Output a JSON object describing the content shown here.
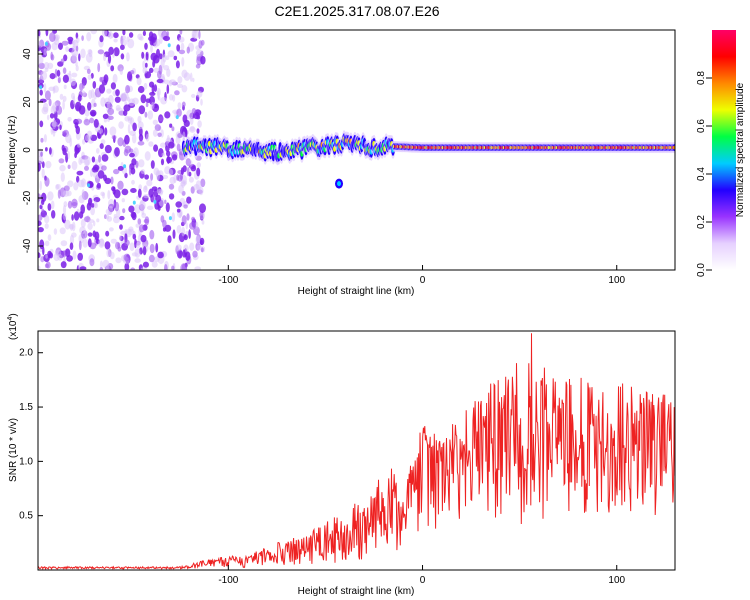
{
  "title": "C2E1.2025.317.08.07.E26",
  "chart_data": [
    {
      "type": "heatmap",
      "name": "spectrogram",
      "xlabel": "Height of straight line (km)",
      "ylabel": "Frequency (Hz)",
      "xlim": [
        -198,
        130
      ],
      "ylim": [
        -50,
        50
      ],
      "xticks": [
        -100,
        0,
        100
      ],
      "yticks": [
        -40,
        -20,
        0,
        20,
        40
      ],
      "noise_region_x": [
        -198,
        -113
      ],
      "signal_band": {
        "x_start": -123,
        "x_end": 130,
        "center_hz": [
          {
            "x": -120,
            "hz": 2.0
          },
          {
            "x": -100,
            "hz": 0.5
          },
          {
            "x": -80,
            "hz": -1.0
          },
          {
            "x": -60,
            "hz": 0.5
          },
          {
            "x": -40,
            "hz": 3.0
          },
          {
            "x": -25,
            "hz": 1.0
          },
          {
            "x": -15,
            "hz": 1.5
          },
          {
            "x": 0,
            "hz": 1.0
          },
          {
            "x": 130,
            "hz": 1.0
          }
        ]
      },
      "outlier_blob": {
        "x": -43,
        "hz": -14
      },
      "colorbar": {
        "label": "Normalized spectral amplitude",
        "range": [
          0.0,
          1.0
        ],
        "ticks": [
          "0.0",
          "0.2",
          "0.4",
          "0.6",
          "0.8"
        ],
        "tick_values": [
          0.0,
          0.2,
          0.4,
          0.6,
          0.8
        ],
        "colors": [
          "#ffffff",
          "#e6d0ff",
          "#9933ff",
          "#2200ff",
          "#00ccff",
          "#00ff44",
          "#eeff00",
          "#ff8800",
          "#ff0000",
          "#ff0066"
        ]
      }
    },
    {
      "type": "line",
      "name": "snr",
      "xlabel": "Height of straight line (km)",
      "ylabel": "SNR (10 * v/v)",
      "y_multiplier": "(x10",
      "y_multiplier_exp": "4",
      "y_multiplier_close": ")",
      "xlim": [
        -198,
        130
      ],
      "ylim": [
        0,
        2.2
      ],
      "xticks": [
        -100,
        0,
        100
      ],
      "yticks": [
        0.5,
        1.0,
        1.5,
        2.0
      ],
      "ytick_labels": [
        "0.5",
        "1.0",
        "1.5",
        "2.0"
      ],
      "color": "#ee2222",
      "envelope": [
        {
          "x": -198,
          "low": 0.01,
          "high": 0.03
        },
        {
          "x": -125,
          "low": 0.01,
          "high": 0.03
        },
        {
          "x": -110,
          "low": 0.01,
          "high": 0.1
        },
        {
          "x": -90,
          "low": 0.02,
          "high": 0.15
        },
        {
          "x": -70,
          "low": 0.04,
          "high": 0.28
        },
        {
          "x": -55,
          "low": 0.05,
          "high": 0.38
        },
        {
          "x": -40,
          "low": 0.05,
          "high": 0.55
        },
        {
          "x": -25,
          "low": 0.08,
          "high": 0.8
        },
        {
          "x": -15,
          "low": 0.1,
          "high": 0.95
        },
        {
          "x": -5,
          "low": 0.15,
          "high": 1.0
        },
        {
          "x": 0,
          "low": 0.3,
          "high": 1.4
        },
        {
          "x": 10,
          "low": 0.4,
          "high": 1.2
        },
        {
          "x": 25,
          "low": 0.5,
          "high": 1.6
        },
        {
          "x": 40,
          "low": 0.45,
          "high": 1.8
        },
        {
          "x": 55,
          "low": 0.4,
          "high": 2.0
        },
        {
          "x": 70,
          "low": 0.5,
          "high": 1.8
        },
        {
          "x": 90,
          "low": 0.5,
          "high": 1.75
        },
        {
          "x": 110,
          "low": 0.45,
          "high": 1.7
        },
        {
          "x": 130,
          "low": 0.5,
          "high": 1.6
        }
      ],
      "peak": {
        "x": 56,
        "y": 2.18
      }
    }
  ]
}
